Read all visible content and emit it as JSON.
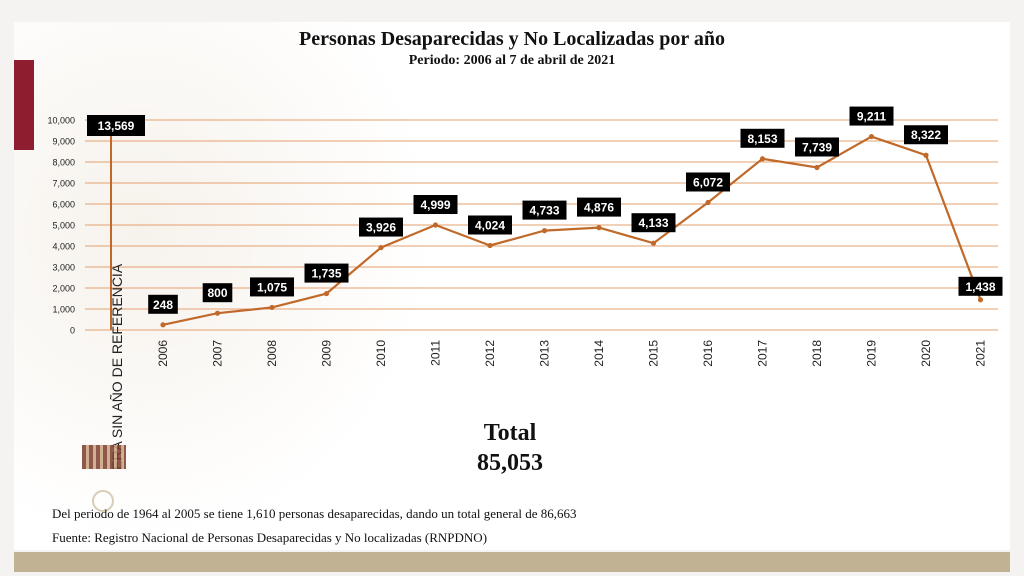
{
  "chart_data": {
    "type": "line",
    "title": "Personas Desaparecidas y No Localizadas por año",
    "subtitle": "Periodo: 2006 al 7 de abril de 2021",
    "y_ticks": [
      "0",
      "1,000",
      "2,000",
      "3,000",
      "4,000",
      "5,000",
      "6,000",
      "7,000",
      "8,000",
      "9,000",
      "10,000"
    ],
    "ylim": [
      0,
      10000
    ],
    "grid": true,
    "reference": {
      "label": "ERA SIN AÑO DE REFERENCIA",
      "value": 13569,
      "value_label": "13,569"
    },
    "categories": [
      "2006",
      "2007",
      "2008",
      "2009",
      "2010",
      "2011",
      "2012",
      "2013",
      "2014",
      "2015",
      "2016",
      "2017",
      "2018",
      "2019",
      "2020",
      "2021"
    ],
    "values": [
      248,
      800,
      1075,
      1735,
      3926,
      4999,
      4024,
      4733,
      4876,
      4133,
      6072,
      8153,
      7739,
      9211,
      8322,
      1438
    ],
    "value_labels": [
      "248",
      "800",
      "1,075",
      "1,735",
      "3,926",
      "4,999",
      "4,024",
      "4,733",
      "4,876",
      "4,133",
      "6,072",
      "8,153",
      "7,739",
      "9,211",
      "8,322",
      "1,438"
    ],
    "line_color": "#c0692a"
  },
  "total": {
    "label": "Total",
    "value": "85,053"
  },
  "note": "Del periodo de 1964 al 2005 se tiene 1,610 personas desaparecidas, dando un total general de 86,663",
  "source": "Fuente: Registro Nacional de Personas Desaparecidas y No localizadas (RNPDNO)",
  "colors": {
    "accent": "#8e1d2f",
    "bar": "#c2b294",
    "grid": "#e3a070"
  }
}
